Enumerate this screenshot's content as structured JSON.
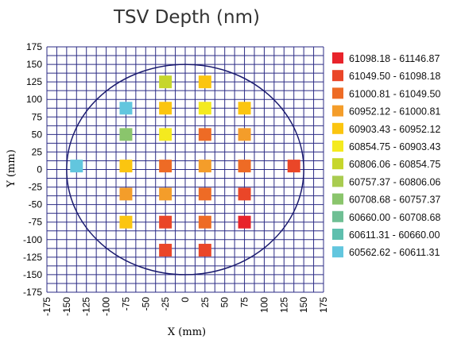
{
  "chart_data": {
    "type": "scatter",
    "title": "TSV Depth (nm)",
    "xlabel": "X (mm)",
    "ylabel": "Y (mm)",
    "xlim": [
      -175,
      175
    ],
    "ylim": [
      -175,
      175
    ],
    "grid": true,
    "grid_step": 12.5,
    "x_ticks": [
      -175,
      -150,
      -125,
      -100,
      -75,
      -50,
      -25,
      0,
      25,
      50,
      75,
      100,
      125,
      150,
      175
    ],
    "y_ticks": [
      175,
      150,
      125,
      100,
      75,
      50,
      25,
      0,
      -25,
      -50,
      -75,
      -100,
      -125,
      -150,
      -175
    ],
    "wafer_radius": 150,
    "legend_position": "right",
    "legend": [
      {
        "label": "61098.18 - 61146.87",
        "color": "#e8242b"
      },
      {
        "label": "61049.50 - 61098.18",
        "color": "#ea4628"
      },
      {
        "label": "61000.81 - 61049.50",
        "color": "#ee6b25"
      },
      {
        "label": "60952.12 - 61000.81",
        "color": "#f49d2a"
      },
      {
        "label": "60903.43 - 60952.12",
        "color": "#fbc510"
      },
      {
        "label": "60854.75 - 60903.43",
        "color": "#f4ea1f"
      },
      {
        "label": "60806.06 - 60854.75",
        "color": "#c6d62c"
      },
      {
        "label": "60757.37 - 60806.06",
        "color": "#a9cc50"
      },
      {
        "label": "60708.68 - 60757.37",
        "color": "#8ac56c"
      },
      {
        "label": "60660.00 - 60708.68",
        "color": "#6fbf94"
      },
      {
        "label": "60611.31 - 60660.00",
        "color": "#5ebfae"
      },
      {
        "label": "60562.62 - 60611.31",
        "color": "#62c6de"
      }
    ],
    "points": [
      {
        "x": -25,
        "y": 125,
        "bin": 6
      },
      {
        "x": 25,
        "y": 125,
        "bin": 4
      },
      {
        "x": -75,
        "y": 87.5,
        "bin": 11
      },
      {
        "x": -25,
        "y": 87.5,
        "bin": 4
      },
      {
        "x": 25,
        "y": 87.5,
        "bin": 5
      },
      {
        "x": 75,
        "y": 87.5,
        "bin": 4
      },
      {
        "x": -75,
        "y": 50,
        "bin": 8
      },
      {
        "x": -25,
        "y": 50,
        "bin": 5
      },
      {
        "x": 25,
        "y": 50,
        "bin": 2
      },
      {
        "x": 75,
        "y": 50,
        "bin": 3
      },
      {
        "x": -137.5,
        "y": 5,
        "bin": 11
      },
      {
        "x": -75,
        "y": 5,
        "bin": 4
      },
      {
        "x": -25,
        "y": 5,
        "bin": 2
      },
      {
        "x": 25,
        "y": 5,
        "bin": 3
      },
      {
        "x": 75,
        "y": 5,
        "bin": 2
      },
      {
        "x": 137.5,
        "y": 5,
        "bin": 1
      },
      {
        "x": -75,
        "y": -35,
        "bin": 3
      },
      {
        "x": -25,
        "y": -35,
        "bin": 3
      },
      {
        "x": 25,
        "y": -35,
        "bin": 2
      },
      {
        "x": 75,
        "y": -35,
        "bin": 1
      },
      {
        "x": -75,
        "y": -75,
        "bin": 4
      },
      {
        "x": -25,
        "y": -75,
        "bin": 1
      },
      {
        "x": 25,
        "y": -75,
        "bin": 2
      },
      {
        "x": 75,
        "y": -75,
        "bin": 0
      },
      {
        "x": -25,
        "y": -115,
        "bin": 1
      },
      {
        "x": 25,
        "y": -115,
        "bin": 1
      }
    ]
  }
}
